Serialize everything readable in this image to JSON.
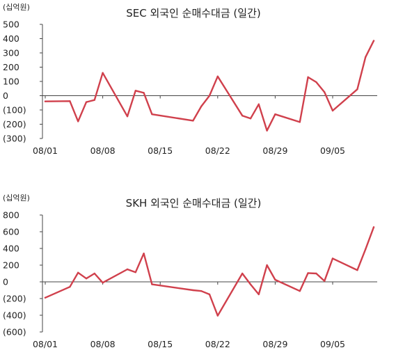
{
  "colors": {
    "line": "#d0404c",
    "axis": "#444444"
  },
  "chart_data": [
    {
      "type": "line",
      "title": "SEC 외국인 순매수대금 (일간)",
      "unit_label": "(십억원)",
      "xlabel": "",
      "ylabel": "",
      "ylim": [
        -300,
        500
      ],
      "yticks": [
        500,
        400,
        300,
        200,
        100,
        0,
        -100,
        -200,
        -300
      ],
      "ytick_labels": [
        "500",
        "400",
        "300",
        "200",
        "100",
        "0",
        "(100)",
        "(200)",
        "(300)"
      ],
      "x_tick_labels": [
        "08/01",
        "08/08",
        "08/15",
        "08/22",
        "08/29",
        "09/05"
      ],
      "x_tick_days": [
        1,
        8,
        15,
        22,
        29,
        36
      ],
      "grid": false,
      "series": [
        {
          "x": [
            1,
            4,
            5,
            6,
            7,
            8,
            11,
            12,
            13,
            14,
            19,
            20,
            21,
            22,
            25,
            26,
            27,
            28,
            29,
            32,
            33,
            34,
            35,
            36,
            39,
            40,
            41
          ],
          "values": [
            -40,
            -38,
            -180,
            -45,
            -30,
            160,
            -145,
            35,
            20,
            -130,
            -175,
            -75,
            0,
            135,
            -140,
            -160,
            -60,
            -245,
            -130,
            -185,
            130,
            95,
            25,
            -105,
            45,
            270,
            385
          ]
        }
      ]
    },
    {
      "type": "line",
      "title": "SKH 외국인 순매수대금 (일간)",
      "unit_label": "(십억원)",
      "xlabel": "",
      "ylabel": "",
      "ylim": [
        -600,
        800
      ],
      "yticks": [
        800,
        600,
        400,
        200,
        0,
        -200,
        -400,
        -600
      ],
      "ytick_labels": [
        "800",
        "600",
        "400",
        "200",
        "0",
        "(200)",
        "(400)",
        "(600)"
      ],
      "x_tick_labels": [
        "08/01",
        "08/08",
        "08/15",
        "08/22",
        "08/29",
        "09/05"
      ],
      "x_tick_days": [
        1,
        8,
        15,
        22,
        29,
        36
      ],
      "grid": false,
      "series": [
        {
          "x": [
            1,
            4,
            5,
            6,
            7,
            8,
            11,
            12,
            13,
            14,
            19,
            20,
            21,
            22,
            25,
            26,
            27,
            28,
            29,
            32,
            33,
            34,
            35,
            36,
            39,
            40,
            41
          ],
          "values": [
            -190,
            -60,
            110,
            40,
            100,
            -10,
            150,
            115,
            340,
            -30,
            -100,
            -110,
            -150,
            -405,
            100,
            -30,
            -150,
            200,
            25,
            -110,
            105,
            100,
            10,
            280,
            140,
            390,
            655
          ]
        }
      ]
    }
  ]
}
